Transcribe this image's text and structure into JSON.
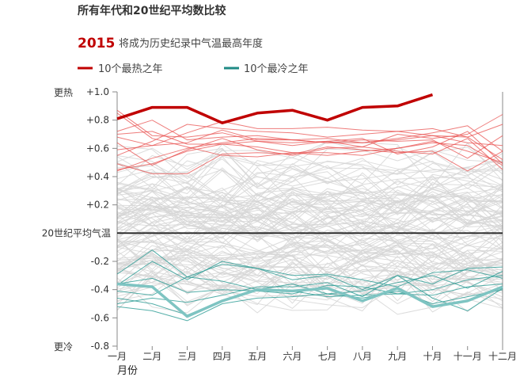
{
  "chart_data": {
    "type": "line",
    "title": "所有年代和20世纪平均数比较",
    "highlight_year": "2015",
    "subtitle": "将成为历史纪录中气温最高年度",
    "legend": [
      {
        "label": "10个最热之年",
        "color": "#c00000"
      },
      {
        "label": "10个最冷之年",
        "color": "#1f8a84"
      }
    ],
    "xlabel": "月份",
    "categories": [
      "一月",
      "二月",
      "三月",
      "四月",
      "五月",
      "六月",
      "七月",
      "八月",
      "九月",
      "十月",
      "十一月",
      "十二月"
    ],
    "ylim": [
      -0.8,
      1.0
    ],
    "yticks": [
      {
        "value": 1.0,
        "label": "+1.0"
      },
      {
        "value": 0.8,
        "label": "+0.8"
      },
      {
        "value": 0.6,
        "label": "+0.6"
      },
      {
        "value": 0.4,
        "label": "+0.4"
      },
      {
        "value": 0.2,
        "label": "+0.2"
      },
      {
        "value": -0.2,
        "label": "-0.2"
      },
      {
        "value": -0.4,
        "label": "-0.4"
      },
      {
        "value": -0.6,
        "label": "-0.6"
      },
      {
        "value": -0.8,
        "label": "-0.8"
      }
    ],
    "baseline_label": "20世纪平均气温",
    "top_label": "更热",
    "bottom_label": "更冷",
    "colors": {
      "highlight": "#c00000",
      "warm": "#e8504f",
      "cold_highlight": "#7ec4c2",
      "cold": "#2b9b94",
      "other": "#d6d6d6",
      "baseline": "#222222",
      "axis": "#888888"
    },
    "highlight_series": {
      "name": "2015",
      "values": [
        0.81,
        0.89,
        0.89,
        0.78,
        0.85,
        0.87,
        0.8,
        0.89,
        0.9,
        0.98
      ]
    },
    "cold_highlight_series": {
      "values": [
        -0.36,
        -0.38,
        -0.59,
        -0.48,
        -0.4,
        -0.41,
        -0.39,
        -0.48,
        -0.39,
        -0.52,
        -0.48,
        -0.38
      ]
    },
    "warm_series": [
      {
        "values": [
          0.68,
          0.62,
          0.64,
          0.73,
          0.66,
          0.66,
          0.64,
          0.64,
          0.66,
          0.69,
          0.68,
          0.52
        ]
      },
      {
        "values": [
          0.45,
          0.49,
          0.58,
          0.63,
          0.61,
          0.57,
          0.55,
          0.58,
          0.6,
          0.65,
          0.58,
          0.5
        ]
      },
      {
        "values": [
          0.72,
          0.8,
          0.66,
          0.68,
          0.69,
          0.66,
          0.67,
          0.64,
          0.67,
          0.71,
          0.76,
          0.58
        ]
      },
      {
        "values": [
          0.64,
          0.48,
          0.59,
          0.67,
          0.59,
          0.55,
          0.6,
          0.61,
          0.58,
          0.56,
          0.67,
          0.45
        ]
      },
      {
        "values": [
          0.55,
          0.65,
          0.77,
          0.74,
          0.72,
          0.71,
          0.68,
          0.7,
          0.72,
          0.69,
          0.64,
          0.62
        ]
      },
      {
        "values": [
          0.7,
          0.72,
          0.63,
          0.63,
          0.65,
          0.64,
          0.65,
          0.61,
          0.7,
          0.67,
          0.7,
          0.84
        ]
      },
      {
        "values": [
          0.85,
          0.67,
          0.61,
          0.55,
          0.54,
          0.57,
          0.57,
          0.55,
          0.6,
          0.64,
          0.62,
          0.48
        ]
      },
      {
        "values": [
          0.49,
          0.42,
          0.42,
          0.56,
          0.57,
          0.56,
          0.61,
          0.59,
          0.57,
          0.58,
          0.44,
          0.58
        ]
      },
      {
        "values": [
          0.59,
          0.62,
          0.71,
          0.79,
          0.74,
          0.74,
          0.75,
          0.73,
          0.72,
          0.74,
          0.68,
          0.77
        ]
      },
      {
        "values": [
          0.44,
          0.53,
          0.6,
          0.64,
          0.67,
          0.66,
          0.64,
          0.66,
          0.65,
          0.66,
          0.53,
          0.69
        ]
      },
      {
        "values": [
          0.87,
          0.69,
          0.68,
          0.71,
          0.65,
          0.62,
          0.65,
          0.67,
          0.56,
          0.61,
          0.72,
          0.49
        ]
      }
    ],
    "cold_series": [
      {
        "values": [
          -0.41,
          -0.44,
          -0.31,
          -0.22,
          -0.25,
          -0.3,
          -0.29,
          -0.33,
          -0.38,
          -0.28,
          -0.26,
          -0.32
        ]
      },
      {
        "values": [
          -0.29,
          -0.12,
          -0.31,
          -0.34,
          -0.4,
          -0.36,
          -0.43,
          -0.41,
          -0.35,
          -0.3,
          -0.39,
          -0.27
        ]
      },
      {
        "values": [
          -0.52,
          -0.55,
          -0.62,
          -0.5,
          -0.46,
          -0.45,
          -0.43,
          -0.46,
          -0.41,
          -0.5,
          -0.45,
          -0.4
        ]
      },
      {
        "values": [
          -0.37,
          -0.2,
          -0.33,
          -0.2,
          -0.25,
          -0.33,
          -0.3,
          -0.4,
          -0.3,
          -0.36,
          -0.25,
          -0.24
        ]
      },
      {
        "values": [
          -0.5,
          -0.46,
          -0.49,
          -0.44,
          -0.38,
          -0.38,
          -0.35,
          -0.45,
          -0.3,
          -0.46,
          -0.55,
          -0.39
        ]
      },
      {
        "values": [
          -0.36,
          -0.32,
          -0.42,
          -0.4,
          -0.41,
          -0.43,
          -0.37,
          -0.38,
          -0.43,
          -0.4,
          -0.33,
          -0.3
        ]
      },
      {
        "values": [
          -0.46,
          -0.5,
          -0.58,
          -0.48,
          -0.4,
          -0.41,
          -0.45,
          -0.44,
          -0.43,
          -0.44,
          -0.38,
          -0.36
        ]
      }
    ],
    "grid": false
  }
}
